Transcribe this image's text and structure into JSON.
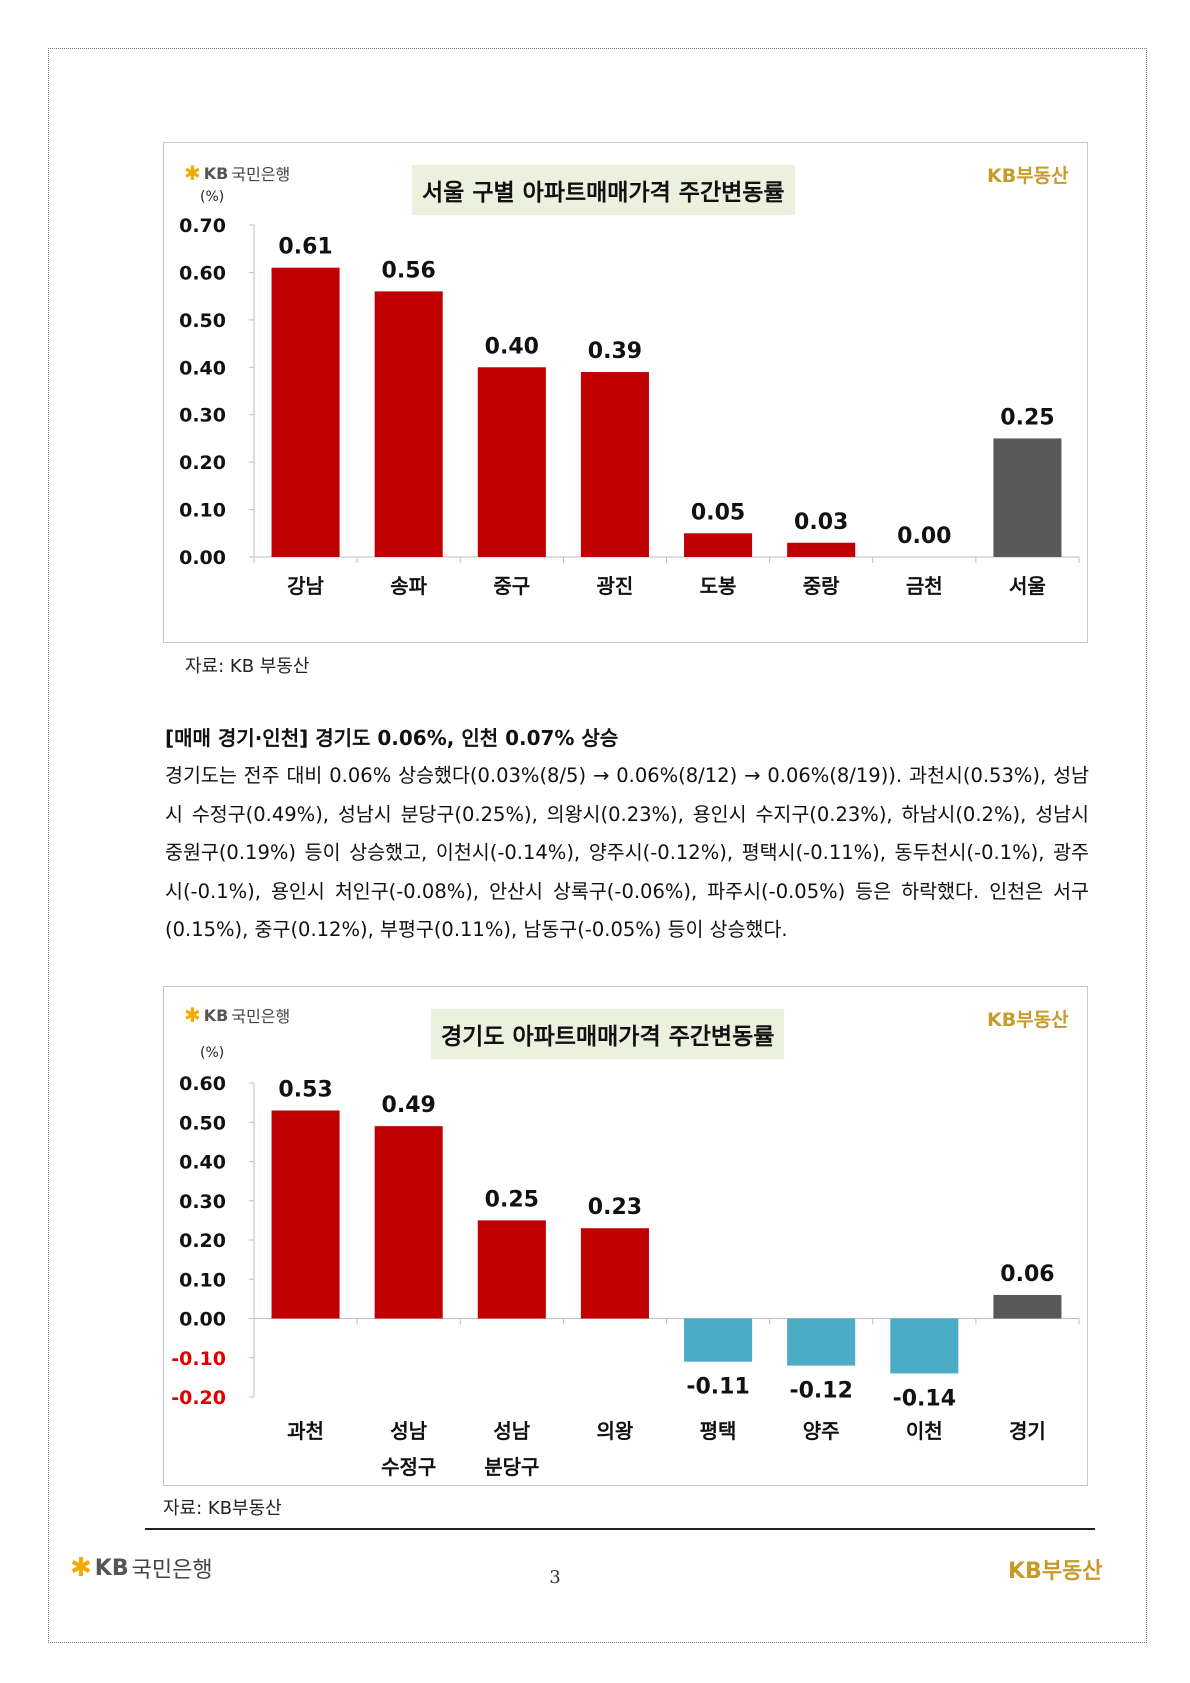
{
  "chart_data": [
    {
      "type": "bar",
      "title": "서울 구별 아파트매매가격 주간변동률",
      "unit": "(%)",
      "categories": [
        "강남",
        "송파",
        "중구",
        "광진",
        "도봉",
        "중랑",
        "금천",
        "서울"
      ],
      "values": [
        0.61,
        0.56,
        0.4,
        0.39,
        0.05,
        0.03,
        0.0,
        0.25
      ],
      "value_labels": [
        "0.61",
        "0.56",
        "0.40",
        "0.39",
        "0.05",
        "0.03",
        "0.00",
        "0.25"
      ],
      "yticks": [
        "0.70",
        "0.60",
        "0.50",
        "0.40",
        "0.30",
        "0.20",
        "0.10",
        "0.00"
      ],
      "ylim": [
        0,
        0.7
      ],
      "colors": {
        "positive": "#c00000",
        "total": "#595959"
      }
    },
    {
      "type": "bar",
      "title": "경기도 아파트매매가격 주간변동률",
      "unit": "(%)",
      "categories": [
        [
          "과천"
        ],
        [
          "성남",
          "수정구"
        ],
        [
          "성남",
          "분당구"
        ],
        [
          "의왕"
        ],
        [
          "평택"
        ],
        [
          "양주"
        ],
        [
          "이천"
        ],
        [
          "경기"
        ]
      ],
      "values": [
        0.53,
        0.49,
        0.25,
        0.23,
        -0.11,
        -0.12,
        -0.14,
        0.06
      ],
      "value_labels": [
        "0.53",
        "0.49",
        "0.25",
        "0.23",
        "-0.11",
        "-0.12",
        "-0.14",
        "0.06"
      ],
      "yticks": [
        "0.60",
        "0.50",
        "0.40",
        "0.30",
        "0.20",
        "0.10",
        "0.00",
        "-0.10",
        "-0.20"
      ],
      "ylim": [
        -0.2,
        0.6
      ],
      "colors": {
        "positive": "#c00000",
        "negative": "#4bacc6",
        "total": "#595959",
        "negative_tick": "#e00000"
      }
    }
  ],
  "logos": {
    "bank": "KB국민은행",
    "bank_brand": "KB",
    "bank_name": "국민은행",
    "realestate": "KB부동산"
  },
  "sources": {
    "seoul": "자료: KB 부동산",
    "gyeonggi": "자료: KB부동산"
  },
  "section": {
    "heading": "[매매 경기·인천] 경기도 0.06%, 인천 0.07% 상승",
    "body": "경기도는 전주 대비 0.06% 상승했다(0.03%(8/5) → 0.06%(8/12) → 0.06%(8/19)). 과천시(0.53%), 성남시 수정구(0.49%), 성남시 분당구(0.25%), 의왕시(0.23%), 용인시 수지구(0.23%), 하남시(0.2%), 성남시 중원구(0.19%) 등이 상승했고, 이천시(-0.14%), 양주시(-0.12%), 평택시(-0.11%), 동두천시(-0.1%), 광주시(-0.1%), 용인시 처인구(-0.08%), 안산시 상록구(-0.06%), 파주시(-0.05%) 등은 하락했다. 인천은 서구(0.15%), 중구(0.12%), 부평구(0.11%), 남동구(-0.05%) 등이 상승했다."
  },
  "page_number": "3"
}
